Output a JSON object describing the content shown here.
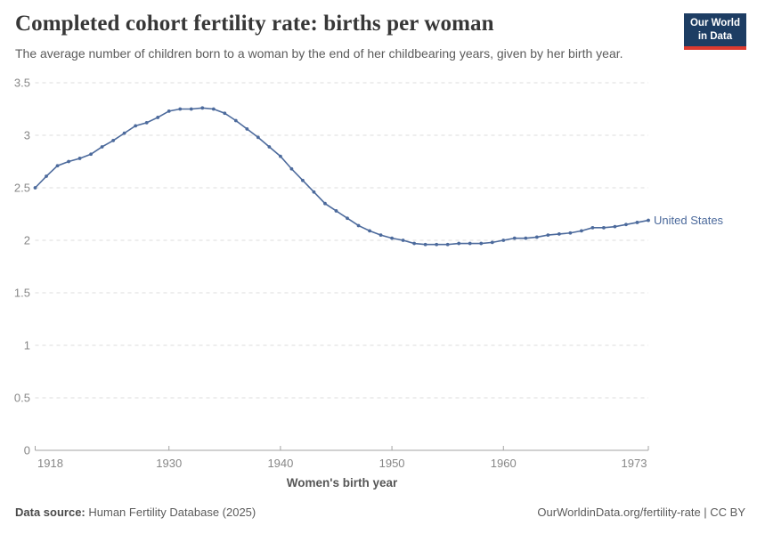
{
  "header": {
    "title": "Completed cohort fertility rate: births per woman",
    "subtitle": "The average number of children born to a woman by the end of her childbearing years, given by her birth year.",
    "logo": {
      "line1": "Our World",
      "line2": "in Data",
      "bg_color": "#1d3d63",
      "accent_color": "#dc3a2f"
    }
  },
  "chart_data": {
    "type": "line",
    "title": "Completed cohort fertility rate: births per woman",
    "xlabel": "Women's birth year",
    "ylabel": "",
    "xlim": [
      1918,
      1973
    ],
    "ylim": [
      0,
      3.5
    ],
    "x_ticks": [
      1918,
      1930,
      1940,
      1950,
      1960,
      1973
    ],
    "y_ticks": [
      0,
      0.5,
      1,
      1.5,
      2,
      2.5,
      3,
      3.5
    ],
    "grid": "horizontal-dashed",
    "legend_position": "end-of-line-label",
    "colors": {
      "line": "#4C6A9C",
      "grid": "#dcdcdc",
      "axis": "#a3a3a3",
      "tick_label": "#878787"
    },
    "series": [
      {
        "name": "United States",
        "color": "#4C6A9C",
        "x": [
          1918,
          1919,
          1920,
          1921,
          1922,
          1923,
          1924,
          1925,
          1926,
          1927,
          1928,
          1929,
          1930,
          1931,
          1932,
          1933,
          1934,
          1935,
          1936,
          1937,
          1938,
          1939,
          1940,
          1941,
          1942,
          1943,
          1944,
          1945,
          1946,
          1947,
          1948,
          1949,
          1950,
          1951,
          1952,
          1953,
          1954,
          1955,
          1956,
          1957,
          1958,
          1959,
          1960,
          1961,
          1962,
          1963,
          1964,
          1965,
          1966,
          1967,
          1968,
          1969,
          1970,
          1971,
          1972,
          1973
        ],
        "values": [
          2.5,
          2.61,
          2.71,
          2.75,
          2.78,
          2.82,
          2.89,
          2.95,
          3.02,
          3.09,
          3.12,
          3.17,
          3.23,
          3.25,
          3.25,
          3.26,
          3.25,
          3.21,
          3.14,
          3.06,
          2.98,
          2.89,
          2.8,
          2.68,
          2.57,
          2.46,
          2.35,
          2.28,
          2.21,
          2.14,
          2.09,
          2.05,
          2.02,
          2.0,
          1.97,
          1.96,
          1.96,
          1.96,
          1.97,
          1.97,
          1.97,
          1.98,
          2.0,
          2.02,
          2.02,
          2.03,
          2.05,
          2.06,
          2.07,
          2.09,
          2.12,
          2.12,
          2.13,
          2.15,
          2.17,
          2.19
        ]
      }
    ]
  },
  "footer": {
    "source_label": "Data source:",
    "source_text": "Human Fertility Database (2025)",
    "attribution": "OurWorldinData.org/fertility-rate | CC BY"
  }
}
